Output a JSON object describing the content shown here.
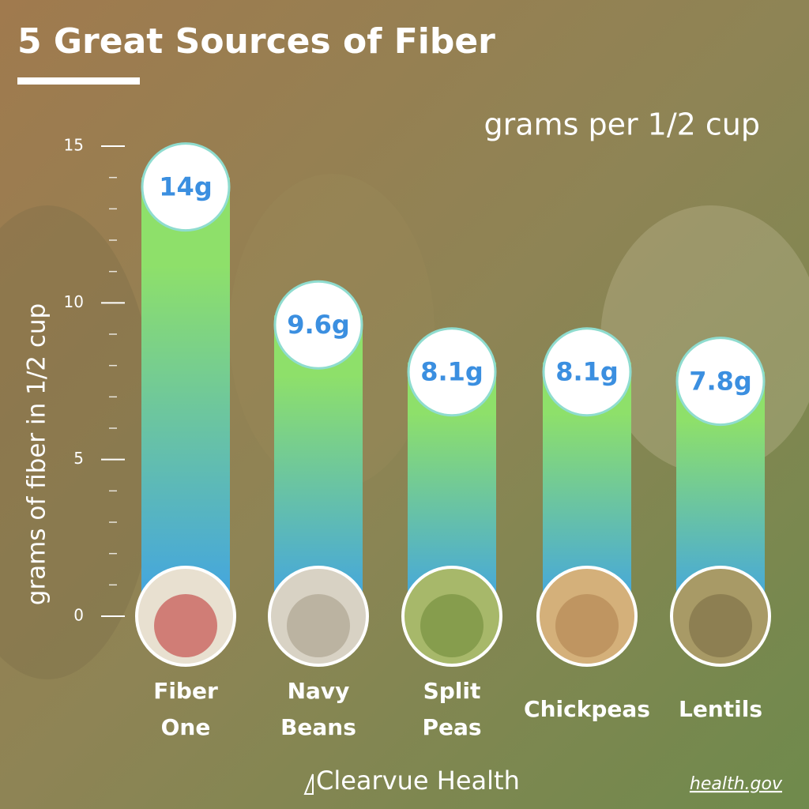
{
  "chart_data": {
    "type": "bar",
    "title": "5 Great Sources of Fiber",
    "subtitle": "grams per 1/2 cup",
    "y_label": "grams of fiber in 1/2 cup",
    "categories": [
      "Fiber\nOne",
      "Navy\nBeans",
      "Split\nPeas",
      "Chickpeas",
      "Lentils"
    ],
    "values": [
      14,
      9.6,
      8.1,
      8.1,
      7.8
    ],
    "value_labels": [
      "14g",
      "9.6g",
      "8.1g",
      "8.1g",
      "7.8g"
    ],
    "ylim": [
      0,
      15
    ],
    "yticks": [
      0,
      5,
      10,
      15
    ],
    "yticks_minor": [
      1,
      2,
      3,
      4,
      6,
      7,
      8,
      9,
      11,
      12,
      13,
      14
    ],
    "colors": [
      "#8ee06a",
      "#3fa2e6"
    ],
    "brand": "Clearvue Health",
    "source": "health.gov"
  }
}
